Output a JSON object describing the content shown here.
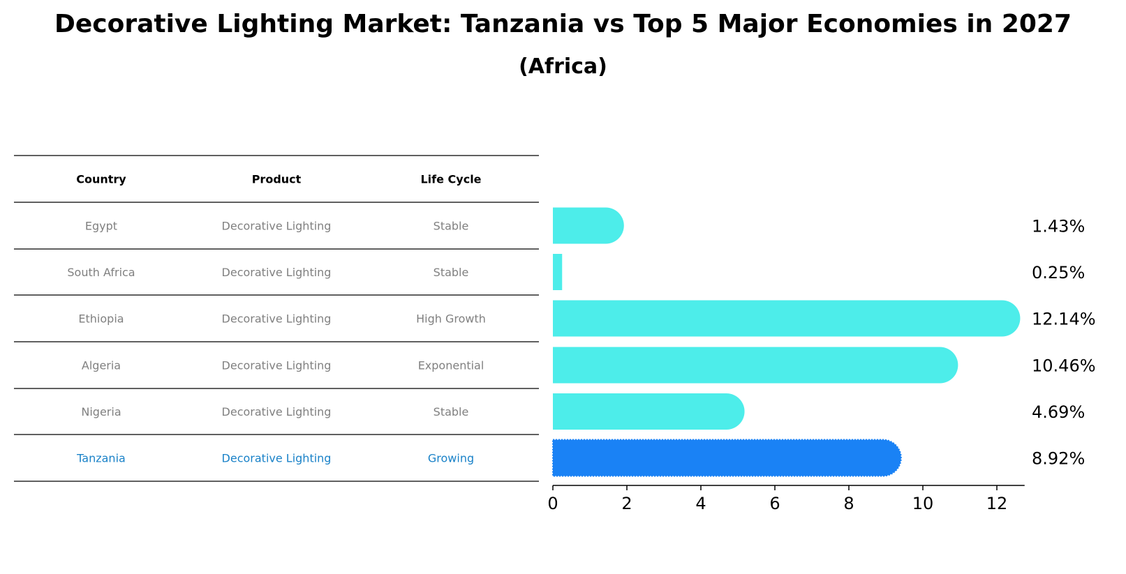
{
  "title": "Decorative Lighting Market: Tanzania vs Top 5 Major Economies in 2027",
  "subtitle": "(Africa)",
  "table": {
    "headers": [
      "Country",
      "Product",
      "Life Cycle"
    ],
    "rows": [
      [
        "Egypt",
        "Decorative Lighting",
        "Stable"
      ],
      [
        "South Africa",
        "Decorative Lighting",
        "Stable"
      ],
      [
        "Ethiopia",
        "Decorative Lighting",
        "High Growth"
      ],
      [
        "Algeria",
        "Decorative Lighting",
        "Exponential"
      ],
      [
        "Nigeria",
        "Decorative Lighting",
        "Stable"
      ],
      [
        "Tanzania",
        "Decorative Lighting",
        "Growing"
      ]
    ],
    "highlight_row": 5
  },
  "colors": {
    "bar": "#4DEDEA",
    "highlight_bar": "#1A82F5",
    "highlight_text": "#1A82C8",
    "text_gray": "#808080",
    "line": "#000000"
  },
  "chart_data": {
    "type": "bar",
    "orientation": "horizontal",
    "title": "Decorative Lighting Market: Tanzania vs Top 5 Major Economies in 2027",
    "subtitle": "(Africa)",
    "categories": [
      "Egypt",
      "South Africa",
      "Ethiopia",
      "Algeria",
      "Nigeria",
      "Tanzania"
    ],
    "values": [
      1.43,
      0.25,
      12.14,
      10.46,
      4.69,
      8.92
    ],
    "value_labels": [
      "1.43%",
      "0.25%",
      "12.14%",
      "10.46%",
      "4.69%",
      "8.92%"
    ],
    "highlight": "Tanzania",
    "xticks": [
      0,
      2,
      4,
      6,
      8,
      10,
      12
    ],
    "xlim": [
      0,
      12.75
    ],
    "xlabel": "",
    "ylabel": "",
    "grid": false
  }
}
